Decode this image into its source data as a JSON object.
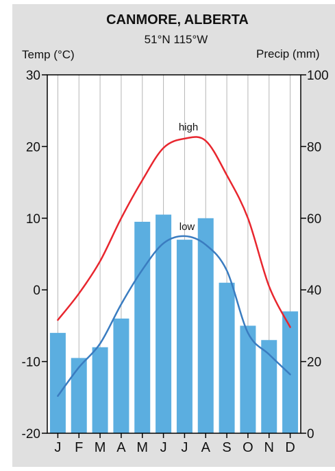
{
  "chart_data": {
    "type": "bar",
    "title": "CANMORE, ALBERTA",
    "subtitle": "51°N  115°W",
    "y_left_label": "Temp (°C)",
    "y_right_label": "Precip (mm)",
    "categories": [
      "J",
      "F",
      "M",
      "A",
      "M",
      "J",
      "J",
      "A",
      "S",
      "O",
      "N",
      "D"
    ],
    "y_left_ticks": [
      "30",
      "20",
      "10",
      "0",
      "-10",
      "-20"
    ],
    "y_right_ticks": [
      "100",
      "80",
      "60",
      "40",
      "20",
      "0"
    ],
    "y_left_range": [
      -20,
      30
    ],
    "y_right_range": [
      0,
      100
    ],
    "grid": "vertical",
    "precipitation": {
      "values": [
        28,
        21,
        24,
        32,
        59,
        61,
        54,
        60,
        42,
        30,
        26,
        34
      ],
      "color": "#5baee0"
    },
    "series": [
      {
        "name": "high",
        "values": [
          -4.2,
          -0.5,
          4.0,
          10.0,
          15.3,
          19.8,
          21.1,
          20.8,
          16.0,
          10.0,
          0.5,
          -5.2
        ],
        "color": "#e8262e"
      },
      {
        "name": "low",
        "values": [
          -14.8,
          -10.8,
          -7.5,
          -2.0,
          2.8,
          6.5,
          7.5,
          6.3,
          2.7,
          -6.0,
          -9.0,
          -11.8
        ],
        "color": "#3a7cc0"
      }
    ]
  }
}
